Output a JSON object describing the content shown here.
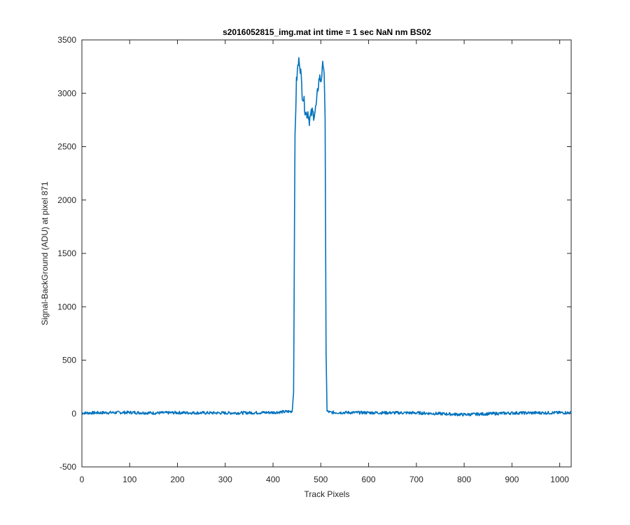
{
  "chart_data": {
    "type": "line",
    "title": "s2016052815_img.mat int time = 1 sec  NaN nm BS02",
    "xlabel": "Track Pixels",
    "ylabel": "Signal-BackGround (ADU) at pixel 871",
    "xlim": [
      0,
      1024
    ],
    "ylim": [
      -500,
      3500
    ],
    "x_ticks": [
      0,
      100,
      200,
      300,
      400,
      500,
      600,
      700,
      800,
      900,
      1000
    ],
    "y_ticks": [
      -500,
      0,
      500,
      1000,
      1500,
      2000,
      2500,
      3000,
      3500
    ],
    "grid": false,
    "color": "#0072BD",
    "series": [
      {
        "x": [
          0,
          50,
          100,
          150,
          200,
          250,
          300,
          350,
          400,
          440,
          443,
          446,
          449,
          452,
          455,
          458,
          461,
          464,
          467,
          470,
          473,
          476,
          479,
          482,
          485,
          488,
          491,
          494,
          497,
          500,
          503,
          505,
          507,
          509,
          511,
          513,
          520,
          600,
          700,
          800,
          900,
          1024
        ],
        "y": [
          5,
          8,
          10,
          5,
          8,
          6,
          5,
          7,
          10,
          20,
          200,
          2600,
          3100,
          3250,
          3320,
          3200,
          3000,
          2950,
          2850,
          2800,
          2830,
          2750,
          2790,
          2820,
          2800,
          2830,
          2900,
          3050,
          3150,
          3120,
          3200,
          3300,
          3200,
          2700,
          600,
          20,
          10,
          8,
          6,
          -10,
          5,
          8
        ]
      }
    ]
  }
}
